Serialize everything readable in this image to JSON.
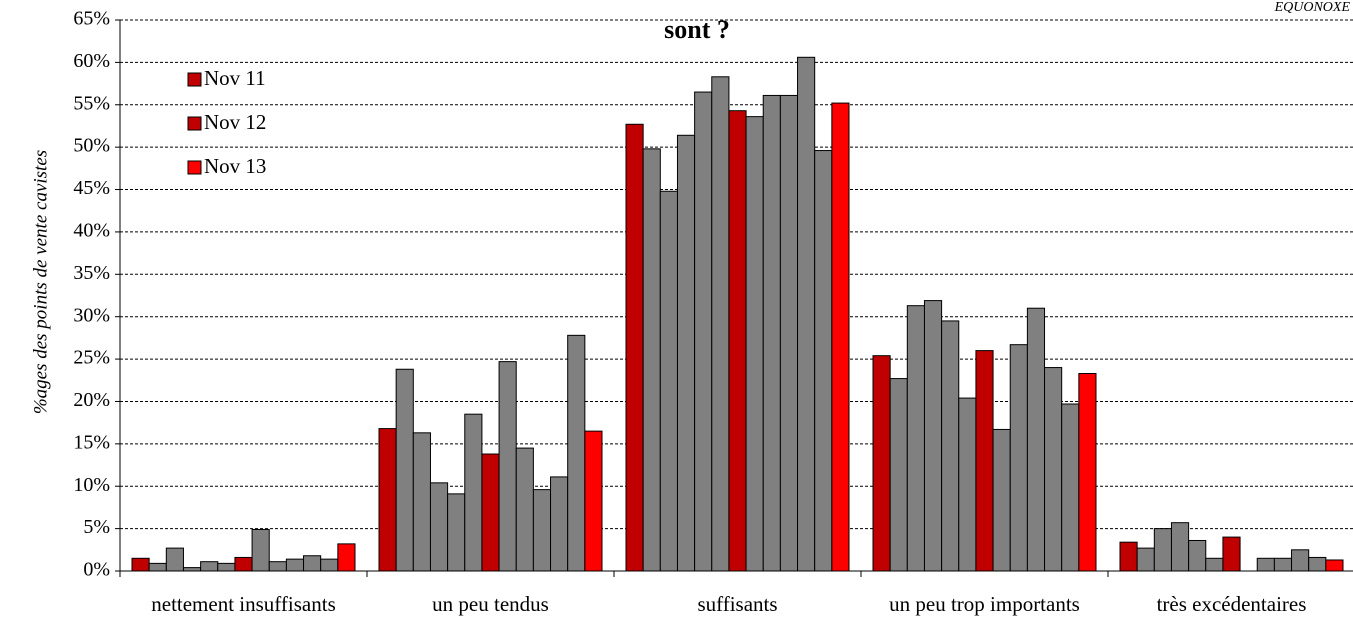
{
  "chart_data": {
    "type": "bar",
    "title": "sont ?",
    "source": "EQUONOXE",
    "y_label": "%ages des points de vente cavistes",
    "categories": [
      "nettement insuffisants",
      "un peu tendus",
      "suffisants",
      "un peu trop importants",
      "très excédentaires"
    ],
    "series": [
      {
        "name": "Nov 11",
        "color": "#c00000",
        "values": [
          1.5,
          16.8,
          52.7,
          25.4,
          3.4
        ]
      },
      {
        "color": "#808080",
        "values": [
          0.9,
          23.8,
          49.8,
          22.7,
          2.7
        ]
      },
      {
        "color": "#808080",
        "values": [
          2.7,
          16.3,
          44.8,
          31.3,
          5.0
        ]
      },
      {
        "color": "#808080",
        "values": [
          0.4,
          10.4,
          51.4,
          31.9,
          5.7
        ]
      },
      {
        "color": "#808080",
        "values": [
          1.1,
          9.1,
          56.5,
          29.5,
          3.6
        ]
      },
      {
        "color": "#808080",
        "values": [
          0.9,
          18.5,
          58.3,
          20.4,
          1.5
        ]
      },
      {
        "name": "Nov 12",
        "color": "#c00000",
        "values": [
          1.6,
          13.8,
          54.3,
          26.0,
          4.0
        ]
      },
      {
        "color": "#808080",
        "values": [
          4.9,
          24.7,
          53.6,
          16.7,
          0
        ]
      },
      {
        "color": "#808080",
        "values": [
          1.1,
          14.5,
          56.1,
          26.7,
          1.5
        ]
      },
      {
        "color": "#808080",
        "values": [
          1.4,
          9.6,
          56.1,
          31.0,
          1.5
        ]
      },
      {
        "color": "#808080",
        "values": [
          1.8,
          11.1,
          60.6,
          24.0,
          2.5
        ]
      },
      {
        "color": "#808080",
        "values": [
          1.4,
          27.8,
          49.6,
          19.7,
          1.6
        ]
      },
      {
        "name": "Nov 13",
        "color": "#ff0000",
        "values": [
          3.2,
          16.5,
          55.2,
          23.3,
          1.3
        ]
      }
    ],
    "ylim": [
      0,
      65
    ],
    "yticks": [
      {
        "value": 0,
        "label": "0%"
      },
      {
        "value": 5,
        "label": "5%"
      },
      {
        "value": 10,
        "label": "10%"
      },
      {
        "value": 15,
        "label": "15%"
      },
      {
        "value": 20,
        "label": "20%"
      },
      {
        "value": 25,
        "label": "25%"
      },
      {
        "value": 30,
        "label": "30%"
      },
      {
        "value": 35,
        "label": "35%"
      },
      {
        "value": 40,
        "label": "40%"
      },
      {
        "value": 45,
        "label": "45%"
      },
      {
        "value": 50,
        "label": "50%"
      },
      {
        "value": 55,
        "label": "55%"
      },
      {
        "value": 60,
        "label": "60%"
      },
      {
        "value": 65,
        "label": "65%"
      }
    ],
    "grid": true,
    "legend": "top-left"
  }
}
